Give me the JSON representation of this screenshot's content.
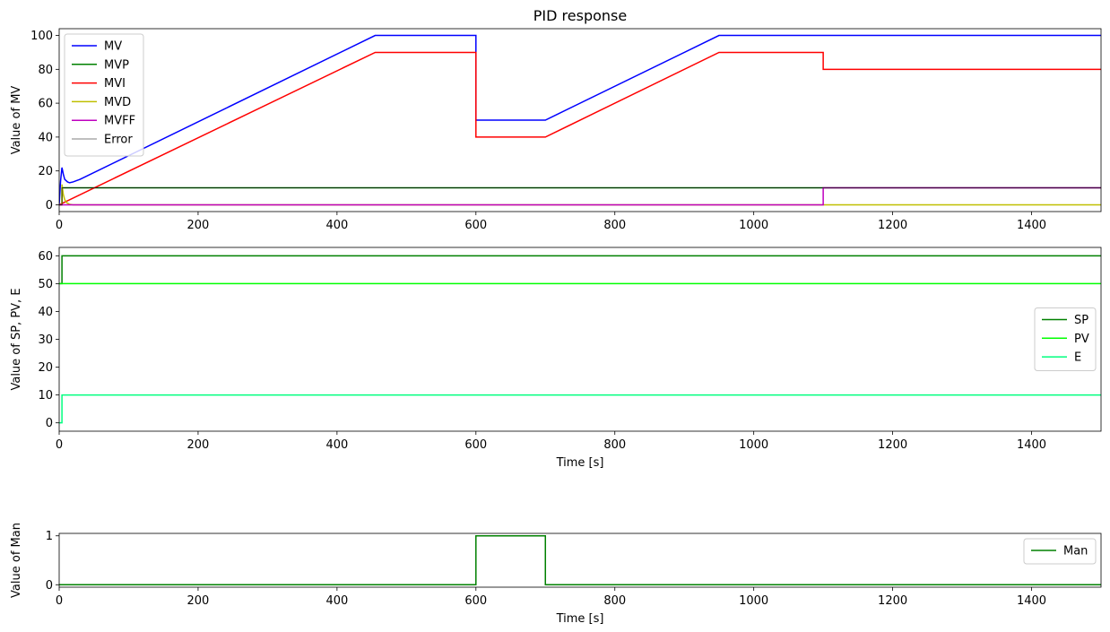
{
  "chart_data": [
    {
      "type": "line",
      "title": "PID response",
      "xlabel": "",
      "ylabel": "Value of MV",
      "xlim": [
        0,
        1500
      ],
      "ylim": [
        -4,
        104
      ],
      "xticks": [
        0,
        200,
        400,
        600,
        800,
        1000,
        1200,
        1400
      ],
      "yticks": [
        0,
        20,
        40,
        60,
        80,
        100
      ],
      "grid": false,
      "legend_position": "upper left",
      "series": [
        {
          "name": "MV",
          "color": "#0000ff",
          "width": 1.5,
          "points": [
            [
              0,
              0
            ],
            [
              2,
              14
            ],
            [
              4,
              22
            ],
            [
              6,
              18
            ],
            [
              8,
              15
            ],
            [
              12,
              13.5
            ],
            [
              15,
              13
            ],
            [
              20,
              13.5
            ],
            [
              30,
              15
            ],
            [
              455,
              100
            ],
            [
              600,
              100
            ],
            [
              600,
              50
            ],
            [
              700,
              50
            ],
            [
              950,
              100
            ],
            [
              1500,
              100
            ]
          ]
        },
        {
          "name": "MVP",
          "color": "#008000",
          "width": 1.5,
          "points": [
            [
              0,
              0
            ],
            [
              4,
              0
            ],
            [
              4,
              10
            ],
            [
              1500,
              10
            ]
          ]
        },
        {
          "name": "MVI",
          "color": "#ff0000",
          "width": 1.5,
          "points": [
            [
              0,
              0
            ],
            [
              455,
              90
            ],
            [
              600,
              90
            ],
            [
              600,
              40
            ],
            [
              700,
              40
            ],
            [
              950,
              90
            ],
            [
              1100,
              90
            ],
            [
              1100,
              80
            ],
            [
              1500,
              80
            ]
          ]
        },
        {
          "name": "MVD",
          "color": "#bfbf00",
          "width": 1.5,
          "points": [
            [
              0,
              0
            ],
            [
              4,
              0
            ],
            [
              4,
              12
            ],
            [
              6,
              6
            ],
            [
              8,
              3
            ],
            [
              11,
              1.2
            ],
            [
              15,
              0.3
            ],
            [
              20,
              0
            ],
            [
              1500,
              0
            ]
          ]
        },
        {
          "name": "MVFF",
          "color": "#bf00bf",
          "width": 1.5,
          "points": [
            [
              0,
              0
            ],
            [
              1100,
              0
            ],
            [
              1100,
              10
            ],
            [
              1500,
              10
            ]
          ]
        },
        {
          "name": "Error",
          "color": "#000000",
          "width": 0.6,
          "points": [
            [
              0,
              0
            ],
            [
              4,
              0
            ],
            [
              4,
              10
            ],
            [
              1500,
              10
            ]
          ]
        }
      ]
    },
    {
      "type": "line",
      "title": "",
      "xlabel": "Time [s]",
      "ylabel": "Value of SP, PV, E",
      "xlim": [
        0,
        1500
      ],
      "ylim": [
        -3,
        63
      ],
      "xticks": [
        0,
        200,
        400,
        600,
        800,
        1000,
        1200,
        1400
      ],
      "yticks": [
        0,
        10,
        20,
        30,
        40,
        50,
        60
      ],
      "grid": false,
      "legend_position": "center right",
      "series": [
        {
          "name": "SP",
          "color": "#008000",
          "width": 1.5,
          "points": [
            [
              0,
              50
            ],
            [
              4,
              50
            ],
            [
              4,
              60
            ],
            [
              1500,
              60
            ]
          ]
        },
        {
          "name": "PV",
          "color": "#00ff00",
          "width": 1.5,
          "points": [
            [
              0,
              50
            ],
            [
              1500,
              50
            ]
          ]
        },
        {
          "name": "E",
          "color": "#00ff7f",
          "width": 1.5,
          "points": [
            [
              0,
              0
            ],
            [
              4,
              0
            ],
            [
              4,
              10
            ],
            [
              1500,
              10
            ]
          ]
        }
      ]
    },
    {
      "type": "line",
      "title": "",
      "xlabel": "Time [s]",
      "ylabel": "Value of Man",
      "xlim": [
        0,
        1500
      ],
      "ylim": [
        -0.05,
        1.05
      ],
      "xticks": [
        0,
        200,
        400,
        600,
        800,
        1000,
        1200,
        1400
      ],
      "yticks": [
        0,
        1
      ],
      "grid": false,
      "legend_position": "upper right",
      "series": [
        {
          "name": "Man",
          "color": "#008000",
          "width": 1.5,
          "points": [
            [
              0,
              0
            ],
            [
              600,
              0
            ],
            [
              600,
              1
            ],
            [
              700,
              1
            ],
            [
              700,
              0
            ],
            [
              1500,
              0
            ]
          ]
        }
      ]
    }
  ]
}
